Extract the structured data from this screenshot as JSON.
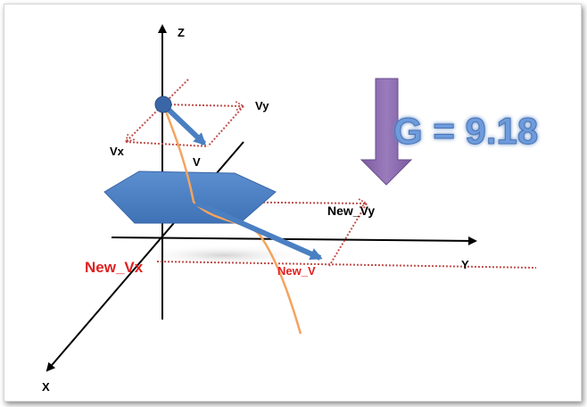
{
  "axes": {
    "z": "Z",
    "y": "Y",
    "x": "X"
  },
  "vectors": {
    "vy": "Vy",
    "vx": "Vx",
    "v": "V",
    "new_vy": "New_Vy",
    "new_vx": "New_Vx",
    "new_v": "New_V"
  },
  "gravity_label": "G = 9.18",
  "colors": {
    "velocity_vector": "#4a7fc1",
    "gravity_arrow": "#8c6bab",
    "trajectory": "#f4a460",
    "components": "#c0504d",
    "platform": "#4f81bd",
    "sphere": "#3a66a8",
    "gravity_text": "#6e9bdc",
    "new_vx_text": "#e02020"
  }
}
